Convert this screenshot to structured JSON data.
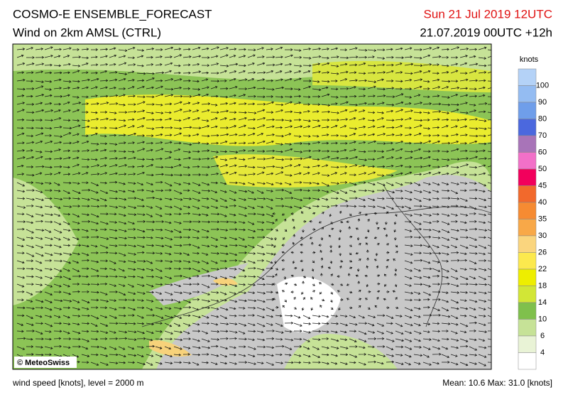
{
  "header": {
    "title": "COSMO-E ENSEMBLE_FORECAST",
    "subtitle": "Wind on 2km AMSL (CTRL)",
    "valid_time": "Sun 21 Jul 2019 12UTC",
    "run_time": "21.07.2019 00UTC +12h"
  },
  "legend": {
    "unit": "knots",
    "labels": [
      "100",
      "90",
      "80",
      "70",
      "60",
      "50",
      "45",
      "40",
      "35",
      "30",
      "26",
      "22",
      "18",
      "14",
      "10",
      "6",
      "4"
    ],
    "colors": [
      "#b4d2f7",
      "#94bcf2",
      "#6f9eea",
      "#4b68de",
      "#a874b8",
      "#f270c8",
      "#f2005c",
      "#f2692c",
      "#f68b32",
      "#f8a848",
      "#fad57e",
      "#fce94e",
      "#eeee00",
      "#d2e636",
      "#7fc04c",
      "#c6e297",
      "#e9f3d6",
      "#ffffff"
    ]
  },
  "map": {
    "credit": "© MeteoSwiss"
  },
  "footer": {
    "level_note": "wind speed [knots], level = 2000 m",
    "stats": "Mean:  10.6 Max:  31.0 [knots]"
  }
}
